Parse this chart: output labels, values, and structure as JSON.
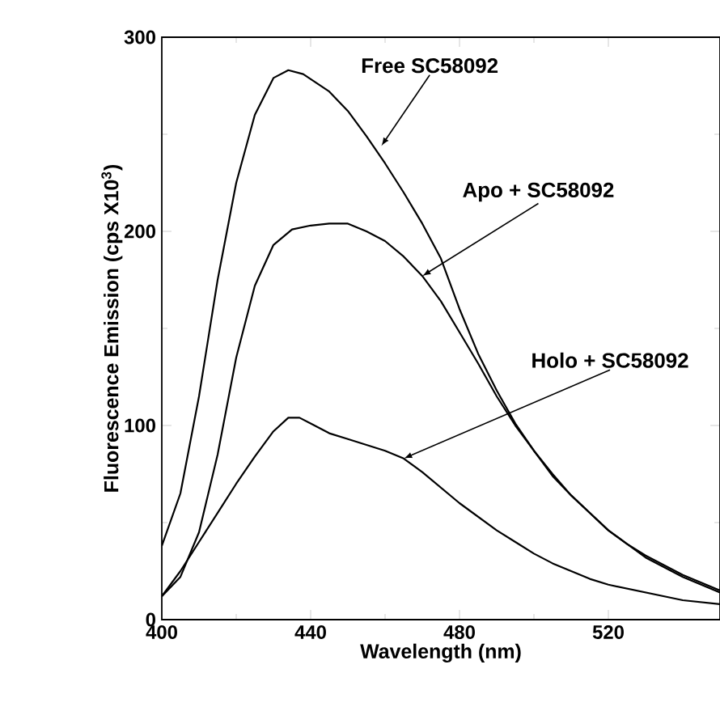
{
  "chart_data": {
    "type": "line",
    "xlabel": "Wavelength (nm)",
    "ylabel": "Fluorescence Emission (cps X10$^{3}$)",
    "xlim": [
      400,
      550
    ],
    "ylim": [
      0,
      300
    ],
    "xticks": [
      400,
      440,
      480,
      520
    ],
    "yticks": [
      0,
      100,
      200,
      300
    ],
    "grid": false,
    "marker": "none",
    "line_style": "solid",
    "series": [
      {
        "color": "#000000",
        "x": [
          400,
          405,
          410,
          415,
          420,
          425,
          430,
          434,
          438,
          445,
          450,
          455,
          460,
          465,
          470,
          475,
          480,
          485,
          490,
          495,
          500,
          505,
          510,
          515,
          520,
          525,
          530,
          540,
          550
        ],
        "values": [
          38,
          65,
          115,
          175,
          225,
          260,
          279,
          283,
          281,
          272,
          262,
          249,
          235,
          220,
          204,
          186,
          160,
          137,
          118,
          101,
          87,
          75,
          64,
          55,
          46,
          39,
          33,
          23,
          15
        ]
      },
      {
        "color": "#000000",
        "x": [
          400,
          405,
          410,
          415,
          420,
          425,
          430,
          435,
          440,
          445,
          450,
          455,
          460,
          465,
          470,
          475,
          480,
          485,
          490,
          495,
          500,
          505,
          510,
          515,
          520,
          525,
          530,
          540,
          550
        ],
        "values": [
          12,
          22,
          45,
          85,
          135,
          172,
          193,
          201,
          203,
          204,
          204,
          200,
          195,
          187,
          177,
          164,
          148,
          132,
          115,
          100,
          87,
          74,
          64,
          55,
          46,
          39,
          32,
          22,
          14
        ]
      },
      {
        "color": "#000000",
        "x": [
          400,
          405,
          410,
          416,
          420,
          425,
          430,
          434,
          437,
          440,
          445,
          450,
          455,
          460,
          465,
          470,
          475,
          480,
          485,
          490,
          495,
          500,
          505,
          510,
          515,
          520,
          530,
          540,
          550
        ],
        "values": [
          12,
          25,
          40,
          58,
          70,
          84,
          97,
          104,
          104,
          101,
          96,
          93,
          90,
          87,
          83,
          76,
          68,
          60,
          53,
          46,
          40,
          34,
          29,
          25,
          21,
          18,
          14,
          10,
          8
        ]
      }
    ],
    "annotations": [
      {
        "text": "Free SC58092",
        "x": 459,
        "y": 244
      },
      {
        "text": "Apo + SC58092",
        "x": 470,
        "y": 177
      },
      {
        "text": "Holo + SC58092",
        "x": 465,
        "y": 83
      }
    ]
  }
}
